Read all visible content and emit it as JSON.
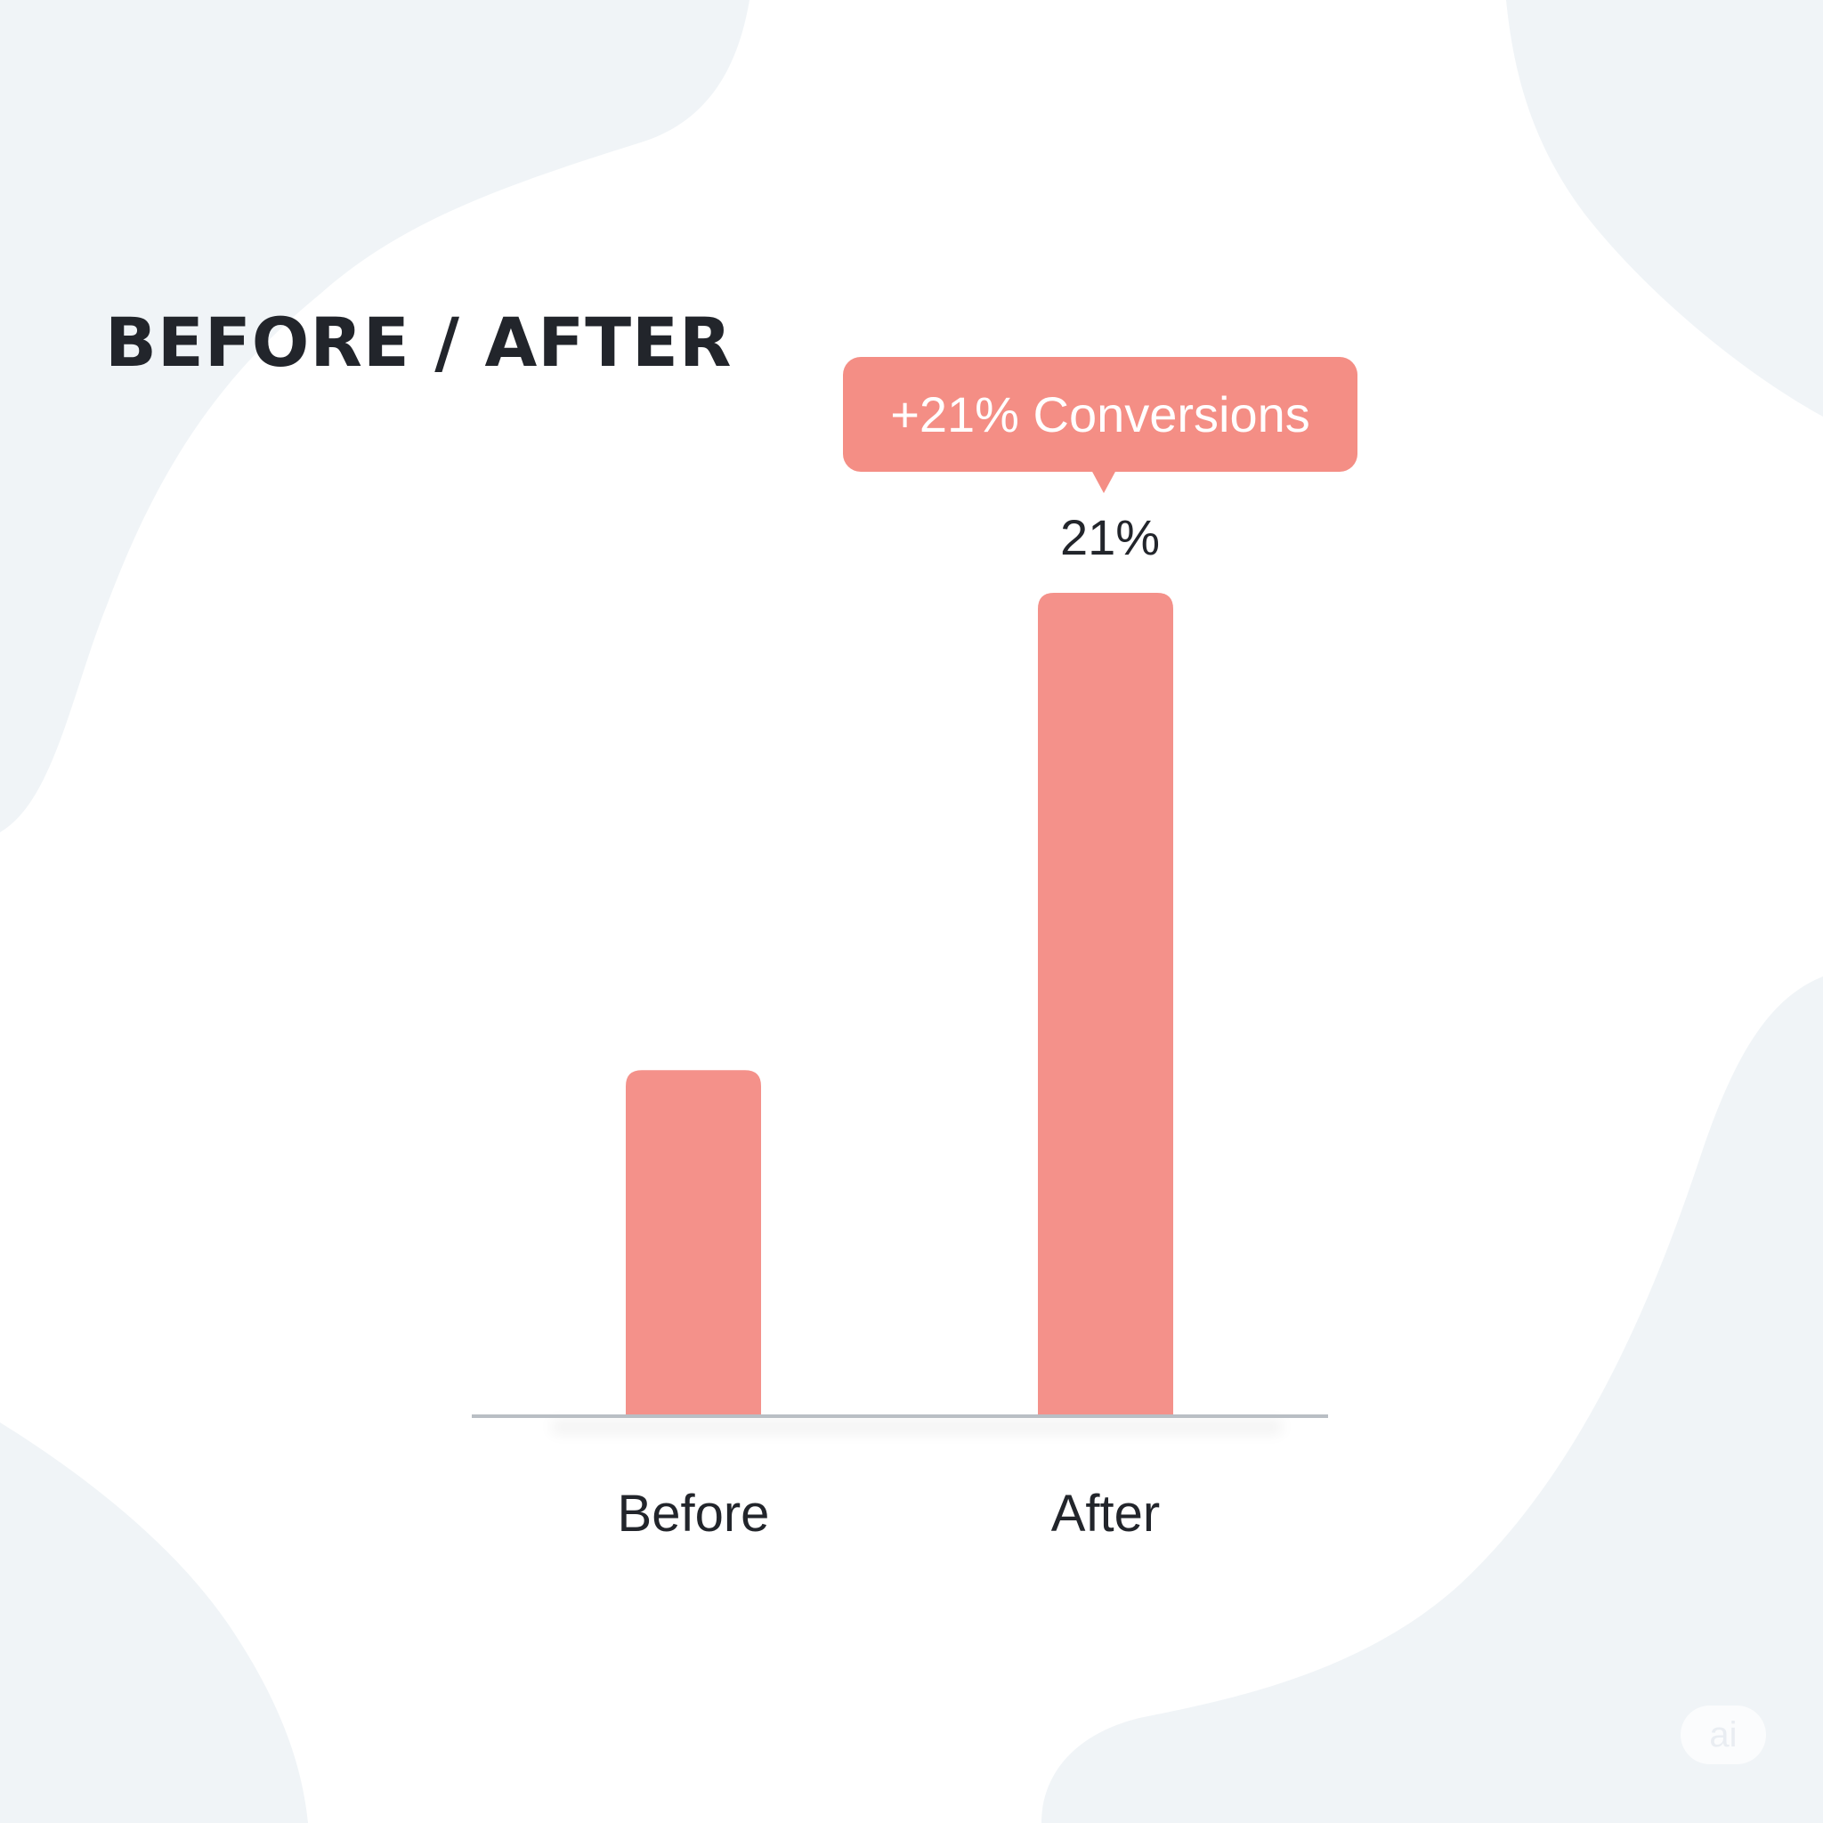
{
  "chart_data": {
    "type": "bar",
    "title": "BEFORE / AFTER",
    "categories": [
      "Before",
      "After"
    ],
    "values": [
      8.8,
      21
    ],
    "value_labels": [
      "",
      "21%"
    ],
    "ylim": [
      0,
      21
    ],
    "xlabel": "",
    "ylabel": "",
    "grid": false,
    "bar_color": "#f4918a",
    "annotation": "+21% Conversions"
  },
  "watermark": "ai"
}
